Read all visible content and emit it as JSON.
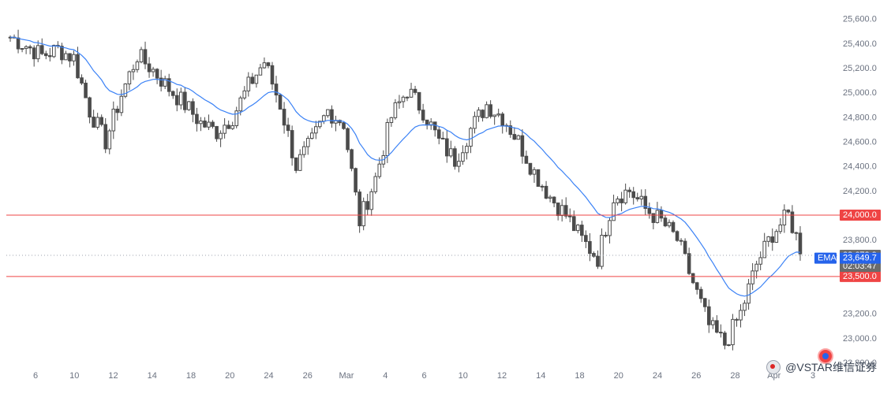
{
  "chart_data": {
    "type": "candlestick",
    "ylim": [
      22800,
      25700
    ],
    "y_ticks": [
      {
        "value": 25600,
        "label": "25,600.0"
      },
      {
        "value": 25400,
        "label": "25,400.0"
      },
      {
        "value": 25200,
        "label": "25,200.0"
      },
      {
        "value": 25000,
        "label": "25,000.0"
      },
      {
        "value": 24800,
        "label": "24,800.0"
      },
      {
        "value": 24600,
        "label": "24,600.0"
      },
      {
        "value": 24400,
        "label": "24,400.0"
      },
      {
        "value": 24200,
        "label": "24,200.0"
      },
      {
        "value": 23800,
        "label": "23,800.0"
      },
      {
        "value": 23200,
        "label": "23,200.0"
      },
      {
        "value": 23000,
        "label": "23,000.0"
      },
      {
        "value": 22800,
        "label": "22,800.0"
      }
    ],
    "x_ticks": [
      "6",
      "10",
      "12",
      "14",
      "18",
      "20",
      "24",
      "26",
      "Mar",
      "4",
      "6",
      "10",
      "12",
      "14",
      "18",
      "20",
      "24",
      "26",
      "28",
      "Apr",
      "3"
    ],
    "close_levels": [
      25450,
      25380,
      25300,
      25350,
      25280,
      24850,
      24600,
      24980,
      25300,
      25180,
      25030,
      24900,
      24750,
      24680,
      24800,
      25050,
      25250,
      24900,
      24400,
      24600,
      24850,
      24750,
      23950,
      24300,
      24800,
      25020,
      24850,
      24600,
      24450,
      24700,
      24900,
      24800,
      24600,
      24350,
      24150,
      24000,
      23800,
      23650,
      24150,
      24200,
      24050,
      23950,
      23800,
      23450,
      23100,
      22950,
      23200,
      23600,
      23850,
      24000,
      23650
    ],
    "series": [
      {
        "name": "EMA",
        "role": "ema",
        "color": "#3b82f6"
      }
    ],
    "horizontal_lines": [
      {
        "value": 24000,
        "label": "24,000.0",
        "color": "#ef4444"
      },
      {
        "value": 23500,
        "label": "23,500.0",
        "color": "#ef4444"
      }
    ],
    "last_price": {
      "value": 23672.9,
      "label": "23,672.9",
      "countdown": "02:03:47"
    },
    "ema_value": {
      "value": 23649.7,
      "label": "23,649.7",
      "name": "EMA"
    },
    "watermark": "@VSTAR维信证券",
    "grid": false
  },
  "colors": {
    "candle": "#4b4b4b",
    "ema": "#3b82f6",
    "level_line": "#ef4444",
    "last_price_bg": "#6b6b6b",
    "ema_label_bg": "#2563eb",
    "axis_text": "#6b7280"
  }
}
